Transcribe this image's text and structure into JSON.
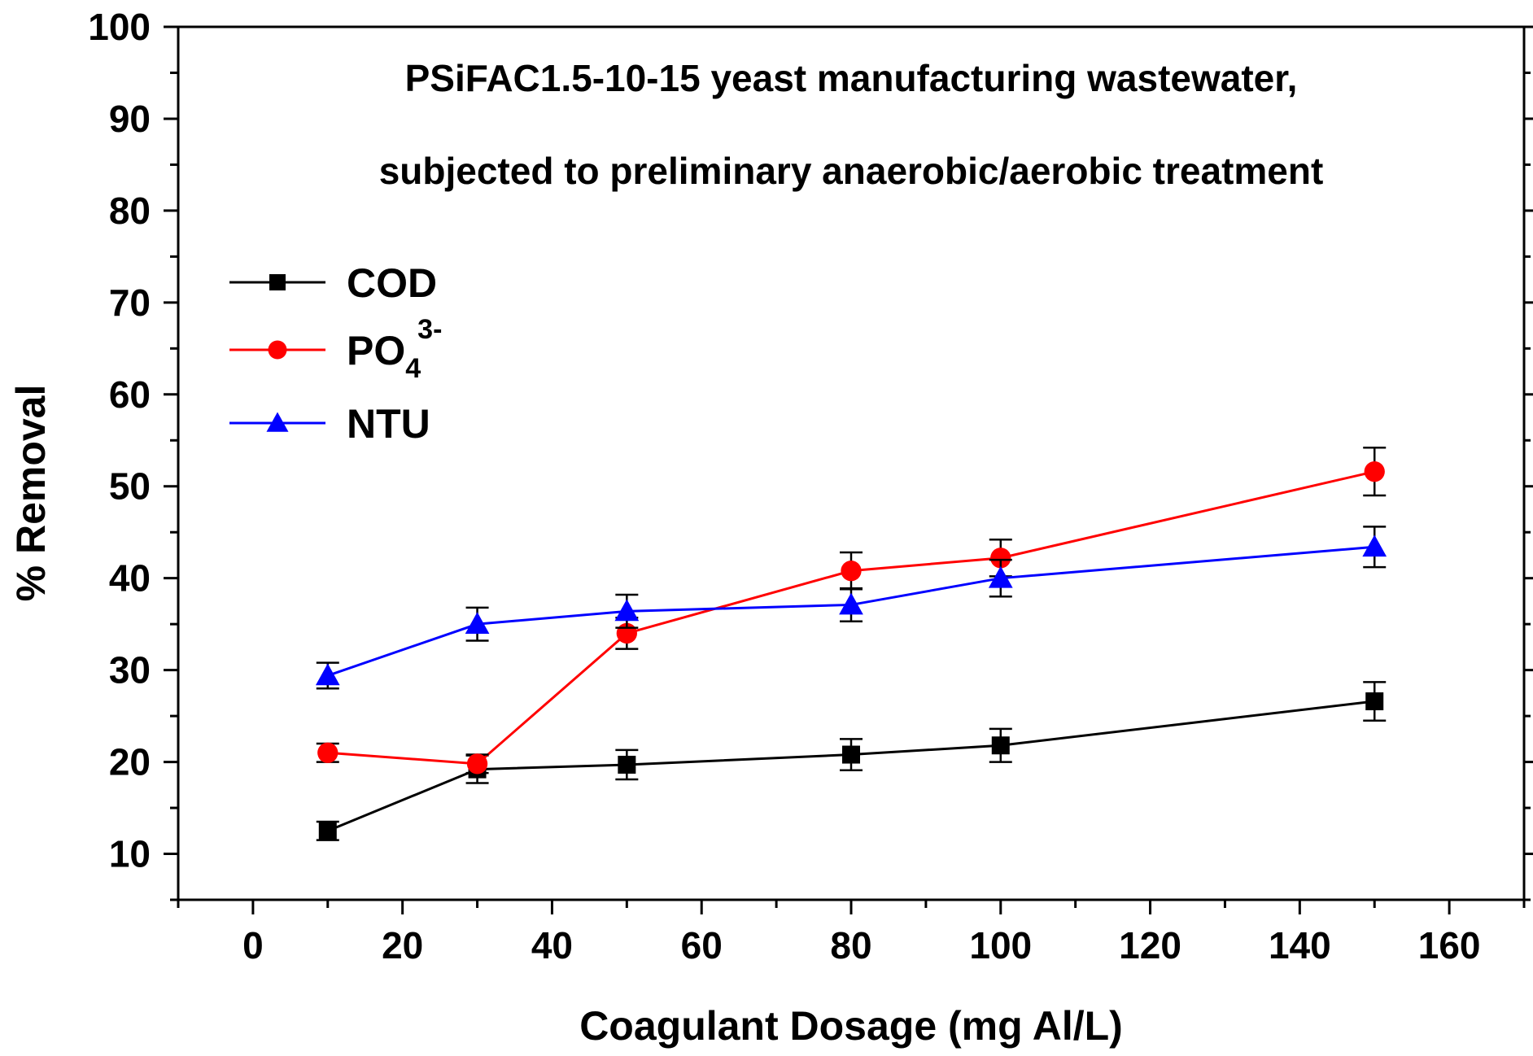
{
  "chart_data": {
    "type": "line",
    "title_lines": [
      "PSiFAC1.5-10-15 yeast manufacturing wastewater,",
      "subjected to preliminary anaerobic/aerobic treatment"
    ],
    "xlabel": "Coagulant Dosage (mg Al/L)",
    "ylabel": "% Removal",
    "xlim": [
      -10,
      170
    ],
    "ylim": [
      5,
      100
    ],
    "xticks": [
      0,
      20,
      40,
      60,
      80,
      100,
      120,
      140,
      160
    ],
    "yticks": [
      10,
      20,
      30,
      40,
      50,
      60,
      70,
      80,
      90,
      100
    ],
    "x": [
      10,
      30,
      50,
      80,
      100,
      150
    ],
    "legend_position": "upper-left",
    "grid": false,
    "series": [
      {
        "name": "COD",
        "marker": "square",
        "color": "#000000",
        "values": [
          12.5,
          19.2,
          19.7,
          20.8,
          21.8,
          26.6
        ],
        "errors": [
          1.0,
          1.5,
          1.6,
          1.7,
          1.8,
          2.1
        ]
      },
      {
        "name": "PO",
        "name_sub": "4",
        "name_sup": "3-",
        "marker": "circle",
        "color": "#ff0000",
        "values": [
          21.0,
          19.8,
          34.0,
          40.8,
          42.2,
          51.6
        ],
        "errors": [
          1.0,
          1.0,
          1.7,
          2.0,
          2.0,
          2.6
        ]
      },
      {
        "name": "NTU",
        "marker": "triangle",
        "color": "#0000ff",
        "values": [
          29.4,
          35.0,
          36.4,
          37.1,
          40.0,
          43.4
        ],
        "errors": [
          1.4,
          1.8,
          1.8,
          1.8,
          2.0,
          2.2
        ]
      }
    ]
  }
}
